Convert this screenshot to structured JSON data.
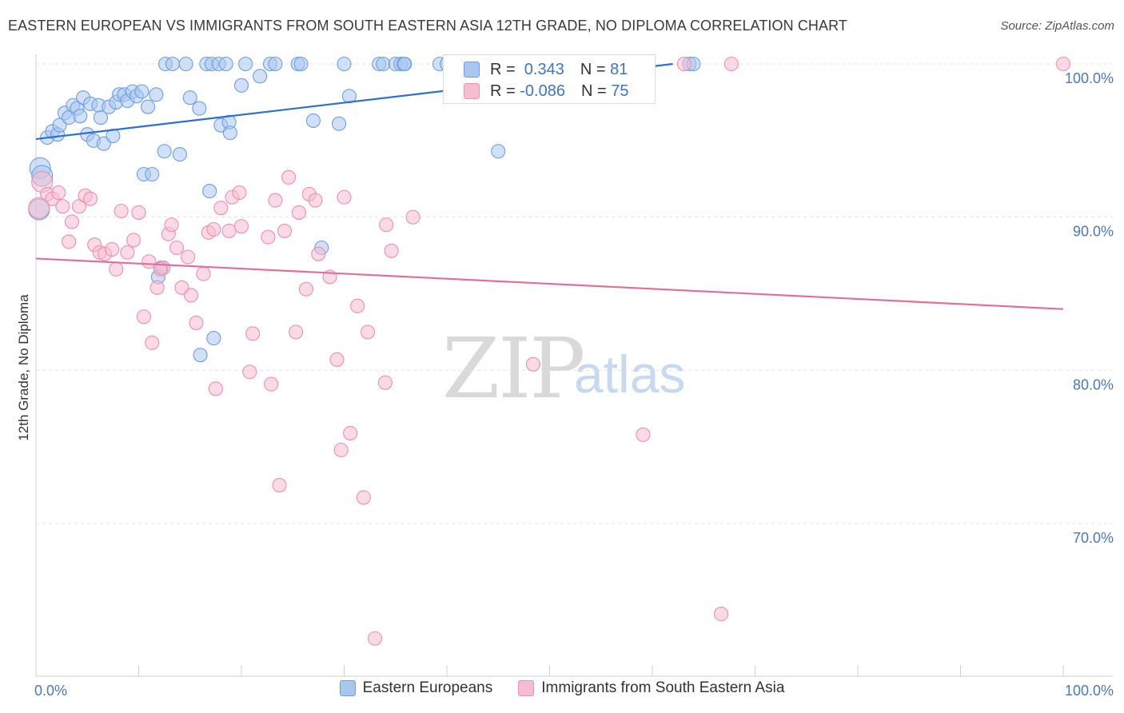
{
  "title": "EASTERN EUROPEAN VS IMMIGRANTS FROM SOUTH EASTERN ASIA 12TH GRADE, NO DIPLOMA CORRELATION CHART",
  "source": "Source: ZipAtlas.com",
  "watermark": {
    "zip": "ZIP",
    "atlas": "atlas"
  },
  "stats": {
    "row1": {
      "r_label": "R = ",
      "r_value": " 0.343",
      "n_label": "N = ",
      "n_value": "81"
    },
    "row2": {
      "r_label": "R = ",
      "r_value": "-0.086",
      "n_label": "N = ",
      "n_value": "75"
    }
  },
  "legend": {
    "series1": "Eastern Europeans",
    "series2": "Immigrants from South Eastern Asia"
  },
  "colors": {
    "blue_fill": "#a9c6ee",
    "blue_stroke": "#6e9fe0",
    "blue_line": "#2f6fcf",
    "pink_fill": "#f6bdd0",
    "pink_stroke": "#ec8fb0",
    "pink_line": "#e0709a",
    "grid": "#e3e3e3",
    "axis_text": "#4a78c2"
  },
  "chart_data": {
    "type": "scatter",
    "title": "EASTERN EUROPEAN VS IMMIGRANTS FROM SOUTH EASTERN ASIA 12TH GRADE, NO DIPLOMA CORRELATION CHART",
    "xlabel": "",
    "ylabel": "12th Grade, No Diploma",
    "xlim": [
      0,
      100
    ],
    "ylim": [
      60.5,
      102
    ],
    "x_tick_labels": [
      "0.0%",
      "100.0%"
    ],
    "y_ticks": [
      70,
      80,
      90,
      100
    ],
    "y_tick_labels": [
      "70.0%",
      "80.0%",
      "90.0%",
      "100.0%"
    ],
    "grid": true,
    "legend_position": "bottom",
    "series": [
      {
        "name": "Eastern Europeans",
        "color": "#a9c6ee",
        "trend": {
          "x": [
            0,
            62
          ],
          "y": [
            95.1,
            100.0
          ]
        },
        "points": [
          [
            0.3,
            90.5
          ],
          [
            0.4,
            93.2
          ],
          [
            0.6,
            92.7
          ],
          [
            1.1,
            95.2
          ],
          [
            1.6,
            95.6
          ],
          [
            2.1,
            95.4
          ],
          [
            2.3,
            96.0
          ],
          [
            2.8,
            96.8
          ],
          [
            3.2,
            96.5
          ],
          [
            3.6,
            97.3
          ],
          [
            4.0,
            97.1
          ],
          [
            4.3,
            96.6
          ],
          [
            4.6,
            97.8
          ],
          [
            5.0,
            95.4
          ],
          [
            5.3,
            97.4
          ],
          [
            5.6,
            95.0
          ],
          [
            6.1,
            97.3
          ],
          [
            6.3,
            96.5
          ],
          [
            6.6,
            94.8
          ],
          [
            7.1,
            97.2
          ],
          [
            7.5,
            95.3
          ],
          [
            7.8,
            97.5
          ],
          [
            8.1,
            98.0
          ],
          [
            8.6,
            98.0
          ],
          [
            8.9,
            97.6
          ],
          [
            9.4,
            98.2
          ],
          [
            9.8,
            97.9
          ],
          [
            10.3,
            98.2
          ],
          [
            10.9,
            97.2
          ],
          [
            10.5,
            92.8
          ],
          [
            11.3,
            92.8
          ],
          [
            11.7,
            98.0
          ],
          [
            11.9,
            86.1
          ],
          [
            12.2,
            86.7
          ],
          [
            12.5,
            94.3
          ],
          [
            12.6,
            100
          ],
          [
            13.3,
            100
          ],
          [
            14.0,
            94.1
          ],
          [
            14.6,
            100
          ],
          [
            15.0,
            97.8
          ],
          [
            15.9,
            97.1
          ],
          [
            16.0,
            81.0
          ],
          [
            16.6,
            100
          ],
          [
            17.1,
            100
          ],
          [
            16.9,
            91.7
          ],
          [
            17.3,
            82.1
          ],
          [
            17.8,
            100
          ],
          [
            18.0,
            96.0
          ],
          [
            18.5,
            100
          ],
          [
            18.8,
            96.2
          ],
          [
            18.9,
            95.5
          ],
          [
            20.0,
            98.6
          ],
          [
            20.4,
            100
          ],
          [
            21.8,
            99.2
          ],
          [
            22.8,
            100
          ],
          [
            23.3,
            100
          ],
          [
            25.5,
            100
          ],
          [
            25.8,
            100
          ],
          [
            27.0,
            96.3
          ],
          [
            27.8,
            88.0
          ],
          [
            29.5,
            96.1
          ],
          [
            30.0,
            100
          ],
          [
            30.5,
            97.9
          ],
          [
            33.4,
            100
          ],
          [
            33.8,
            100
          ],
          [
            35.0,
            100
          ],
          [
            35.5,
            100
          ],
          [
            35.8,
            100
          ],
          [
            39.3,
            100
          ],
          [
            40.0,
            100
          ],
          [
            42.2,
            100
          ],
          [
            44.2,
            100
          ],
          [
            45.0,
            94.3
          ],
          [
            47.0,
            100
          ],
          [
            48.5,
            100
          ],
          [
            51.8,
            100
          ],
          [
            53.2,
            100
          ],
          [
            63.6,
            100
          ],
          [
            64.0,
            100
          ],
          [
            46.5,
            100
          ],
          [
            35.9,
            100
          ]
        ]
      },
      {
        "name": "Immigrants from South Eastern Asia",
        "color": "#f6bdd0",
        "trend": {
          "x": [
            0,
            100
          ],
          "y": [
            87.3,
            84.0
          ]
        },
        "points": [
          [
            0.3,
            90.6
          ],
          [
            0.6,
            92.3
          ],
          [
            1.1,
            91.5
          ],
          [
            1.6,
            91.2
          ],
          [
            2.2,
            91.6
          ],
          [
            2.6,
            90.7
          ],
          [
            3.2,
            88.4
          ],
          [
            3.5,
            89.7
          ],
          [
            4.2,
            90.7
          ],
          [
            4.8,
            91.4
          ],
          [
            5.3,
            91.2
          ],
          [
            5.7,
            88.2
          ],
          [
            6.2,
            87.7
          ],
          [
            6.7,
            87.6
          ],
          [
            7.4,
            87.9
          ],
          [
            7.8,
            86.6
          ],
          [
            8.3,
            90.4
          ],
          [
            8.9,
            87.7
          ],
          [
            9.5,
            88.5
          ],
          [
            10.0,
            90.3
          ],
          [
            10.5,
            83.5
          ],
          [
            11.0,
            87.1
          ],
          [
            11.3,
            81.8
          ],
          [
            11.8,
            85.4
          ],
          [
            12.4,
            86.7
          ],
          [
            12.9,
            88.9
          ],
          [
            13.2,
            89.5
          ],
          [
            13.7,
            88.0
          ],
          [
            14.2,
            85.4
          ],
          [
            14.8,
            87.4
          ],
          [
            15.1,
            84.9
          ],
          [
            15.6,
            83.1
          ],
          [
            16.3,
            86.3
          ],
          [
            16.8,
            89.0
          ],
          [
            17.3,
            89.2
          ],
          [
            17.5,
            78.8
          ],
          [
            18.0,
            90.6
          ],
          [
            18.8,
            89.1
          ],
          [
            19.1,
            91.3
          ],
          [
            19.8,
            91.6
          ],
          [
            20.0,
            89.4
          ],
          [
            20.8,
            79.9
          ],
          [
            21.1,
            82.4
          ],
          [
            22.6,
            88.7
          ],
          [
            22.9,
            79.1
          ],
          [
            23.3,
            91.1
          ],
          [
            23.7,
            72.5
          ],
          [
            24.2,
            89.1
          ],
          [
            24.6,
            92.6
          ],
          [
            25.3,
            82.5
          ],
          [
            25.6,
            90.3
          ],
          [
            26.3,
            85.3
          ],
          [
            26.6,
            91.5
          ],
          [
            27.2,
            91.1
          ],
          [
            27.5,
            87.6
          ],
          [
            28.6,
            86.1
          ],
          [
            29.3,
            80.7
          ],
          [
            29.7,
            74.8
          ],
          [
            30.0,
            91.3
          ],
          [
            30.6,
            75.9
          ],
          [
            31.3,
            84.2
          ],
          [
            31.9,
            71.7
          ],
          [
            32.3,
            82.5
          ],
          [
            33.0,
            62.5
          ],
          [
            34.0,
            79.2
          ],
          [
            34.1,
            89.5
          ],
          [
            34.6,
            87.8
          ],
          [
            36.7,
            90.0
          ],
          [
            48.4,
            80.4
          ],
          [
            59.1,
            75.8
          ],
          [
            63.1,
            100
          ],
          [
            66.7,
            64.1
          ],
          [
            67.7,
            100
          ],
          [
            100.0,
            100
          ],
          [
            12.1,
            86.6
          ]
        ]
      }
    ]
  }
}
